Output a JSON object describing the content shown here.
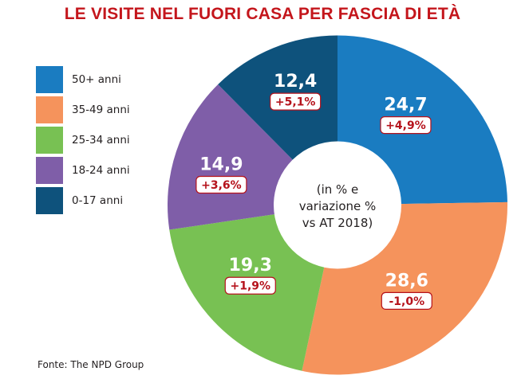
{
  "chart_data": {
    "type": "pie",
    "variant": "donut",
    "title": "LE VISITE NEL FUORI CASA PER FASCIA DI ETÀ",
    "center_label": [
      "(in % e",
      "variazione %",
      "vs AT 2018)"
    ],
    "legend_placement": "left",
    "start": "top, clockwise",
    "slices": [
      {
        "label": "50+ anni",
        "value": 24.7,
        "value_text": "24,7",
        "change_text": "+4,9%",
        "color": "#1A7CC1"
      },
      {
        "label": "35-49 anni",
        "value": 28.6,
        "value_text": "28,6",
        "change_text": "-1,0%",
        "color": "#F5935C"
      },
      {
        "label": "25-34 anni",
        "value": 19.3,
        "value_text": "19,3",
        "change_text": "+1,9%",
        "color": "#78C153"
      },
      {
        "label": "18-24 anni",
        "value": 14.9,
        "value_text": "14,9",
        "change_text": "+3,6%",
        "color": "#7F5EA8"
      },
      {
        "label": "0-17 anni",
        "value": 12.4,
        "value_text": "12,4",
        "change_text": "+5,1%",
        "color": "#0E527C"
      }
    ]
  },
  "source": "Fonte: The NPD Group",
  "colors": {
    "title": "#C4161C",
    "badge": "#B5121B"
  }
}
